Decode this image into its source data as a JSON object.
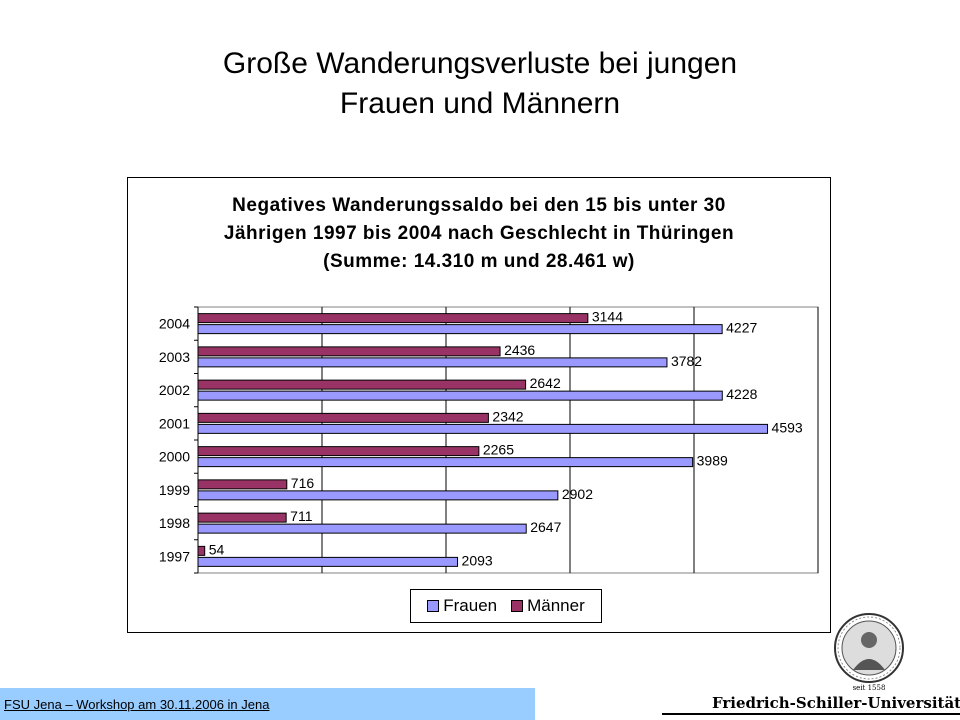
{
  "slide": {
    "title_line1": "Große Wanderungsverluste bei jungen",
    "title_line2": "Frauen und Männern",
    "footer": "FSU Jena – Workshop am 30.11.2006 in Jena",
    "university": "Friedrich-Schiller-Universität Jena",
    "seal_caption": "seit 1558",
    "footer_color": "#99CCFF"
  },
  "chart_data": {
    "type": "bar",
    "orientation": "horizontal",
    "title_lines": [
      "Negatives Wanderungssaldo bei den 15 bis unter 30",
      "Jährigen 1997 bis 2004 nach Geschlecht in Thüringen",
      "(Summe: 14.310 m und 28.461 w)"
    ],
    "categories": [
      "2004",
      "2003",
      "2002",
      "2001",
      "2000",
      "1999",
      "1998",
      "1997"
    ],
    "series": [
      {
        "name": "Männer",
        "color": "#993366",
        "values": [
          3144,
          2436,
          2642,
          2342,
          2265,
          716,
          711,
          54
        ]
      },
      {
        "name": "Frauen",
        "color": "#9999FF",
        "values": [
          4227,
          3782,
          4228,
          4593,
          3989,
          2902,
          2647,
          2093
        ]
      }
    ],
    "legend": [
      "Frauen",
      "Männer"
    ],
    "legend_position": "bottom",
    "xlim": [
      0,
      5000
    ],
    "x_gridlines": [
      1000,
      2000,
      3000,
      4000,
      5000
    ],
    "x_tick_labels_visible": false,
    "plot_background": "#FFFFFF"
  }
}
